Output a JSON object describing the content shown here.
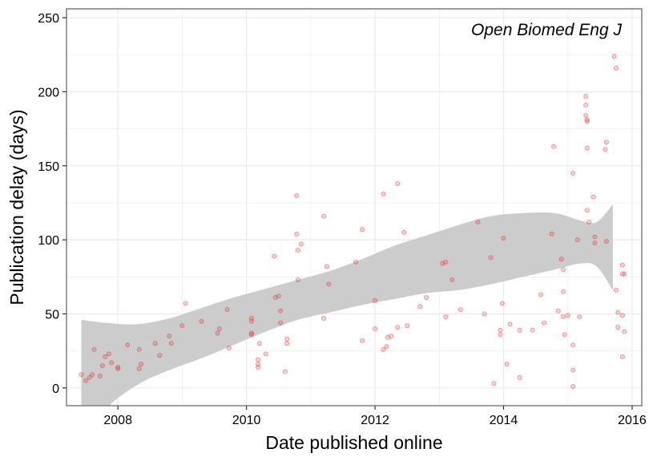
{
  "chart_data": {
    "type": "scatter",
    "title": "",
    "annotation": "Open Biomed Eng J",
    "xlabel": "Date published online",
    "ylabel": "Publication delay (days)",
    "xlim": [
      2007.2,
      2016.15
    ],
    "ylim": [
      -12,
      256
    ],
    "x_ticks": [
      2008,
      2010,
      2012,
      2014,
      2016
    ],
    "y_ticks": [
      0,
      50,
      100,
      150,
      200,
      250
    ],
    "grid": true,
    "colors": {
      "points": "#e41a1c",
      "band": "#cccccc",
      "grid": "#ebebeb",
      "border": "#7f7f7f"
    },
    "trend_band": {
      "x": [
        2007.43,
        2007.8,
        2008.3,
        2008.8,
        2009.3,
        2009.8,
        2010.3,
        2010.8,
        2011.3,
        2011.8,
        2012.3,
        2012.8,
        2013.3,
        2013.8,
        2014.3,
        2014.8,
        2015.2,
        2015.45,
        2015.7
      ],
      "lower": [
        -42,
        -15,
        2,
        12,
        20,
        29,
        38,
        46,
        51,
        56,
        60,
        64,
        66,
        70,
        75,
        80,
        84,
        82,
        66
      ],
      "upper": [
        46,
        44,
        43,
        47,
        54,
        61,
        67,
        73,
        79,
        87,
        96,
        103,
        110,
        116,
        118,
        118,
        113,
        112,
        124
      ]
    },
    "points": [
      {
        "x": 2007.43,
        "y": 9
      },
      {
        "x": 2007.5,
        "y": 5
      },
      {
        "x": 2007.56,
        "y": 7
      },
      {
        "x": 2007.6,
        "y": 9
      },
      {
        "x": 2007.63,
        "y": 26
      },
      {
        "x": 2007.72,
        "y": 8
      },
      {
        "x": 2007.76,
        "y": 15
      },
      {
        "x": 2007.8,
        "y": 21
      },
      {
        "x": 2007.86,
        "y": 23
      },
      {
        "x": 2007.9,
        "y": 17
      },
      {
        "x": 2008.0,
        "y": 14
      },
      {
        "x": 2008.0,
        "y": 13
      },
      {
        "x": 2008.15,
        "y": 29
      },
      {
        "x": 2008.33,
        "y": 26
      },
      {
        "x": 2008.33,
        "y": 13
      },
      {
        "x": 2008.36,
        "y": 16
      },
      {
        "x": 2008.58,
        "y": 30
      },
      {
        "x": 2008.65,
        "y": 22
      },
      {
        "x": 2008.8,
        "y": 35
      },
      {
        "x": 2008.83,
        "y": 30
      },
      {
        "x": 2009.0,
        "y": 42
      },
      {
        "x": 2009.05,
        "y": 57
      },
      {
        "x": 2009.3,
        "y": 45
      },
      {
        "x": 2009.55,
        "y": 37
      },
      {
        "x": 2009.58,
        "y": 40
      },
      {
        "x": 2009.7,
        "y": 53
      },
      {
        "x": 2009.73,
        "y": 27
      },
      {
        "x": 2010.08,
        "y": 47
      },
      {
        "x": 2010.08,
        "y": 45
      },
      {
        "x": 2010.08,
        "y": 37
      },
      {
        "x": 2010.08,
        "y": 36
      },
      {
        "x": 2010.18,
        "y": 19
      },
      {
        "x": 2010.18,
        "y": 16
      },
      {
        "x": 2010.18,
        "y": 14
      },
      {
        "x": 2010.2,
        "y": 30
      },
      {
        "x": 2010.3,
        "y": 23
      },
      {
        "x": 2010.43,
        "y": 89
      },
      {
        "x": 2010.45,
        "y": 61
      },
      {
        "x": 2010.5,
        "y": 62
      },
      {
        "x": 2010.53,
        "y": 52
      },
      {
        "x": 2010.53,
        "y": 44
      },
      {
        "x": 2010.6,
        "y": 11
      },
      {
        "x": 2010.63,
        "y": 33
      },
      {
        "x": 2010.63,
        "y": 30
      },
      {
        "x": 2010.78,
        "y": 130
      },
      {
        "x": 2010.78,
        "y": 104
      },
      {
        "x": 2010.8,
        "y": 93
      },
      {
        "x": 2010.8,
        "y": 73
      },
      {
        "x": 2010.85,
        "y": 97
      },
      {
        "x": 2011.2,
        "y": 116
      },
      {
        "x": 2011.25,
        "y": 82
      },
      {
        "x": 2011.28,
        "y": 70
      },
      {
        "x": 2011.2,
        "y": 47
      },
      {
        "x": 2011.7,
        "y": 85
      },
      {
        "x": 2011.8,
        "y": 107
      },
      {
        "x": 2011.8,
        "y": 32
      },
      {
        "x": 2012.0,
        "y": 59
      },
      {
        "x": 2012.0,
        "y": 40
      },
      {
        "x": 2012.13,
        "y": 131
      },
      {
        "x": 2012.13,
        "y": 26
      },
      {
        "x": 2012.18,
        "y": 28
      },
      {
        "x": 2012.2,
        "y": 34
      },
      {
        "x": 2012.25,
        "y": 35
      },
      {
        "x": 2012.35,
        "y": 138
      },
      {
        "x": 2012.35,
        "y": 41
      },
      {
        "x": 2012.45,
        "y": 105
      },
      {
        "x": 2012.5,
        "y": 42
      },
      {
        "x": 2012.7,
        "y": 55
      },
      {
        "x": 2012.8,
        "y": 61
      },
      {
        "x": 2013.05,
        "y": 84
      },
      {
        "x": 2013.1,
        "y": 85
      },
      {
        "x": 2013.1,
        "y": 48
      },
      {
        "x": 2013.2,
        "y": 73
      },
      {
        "x": 2013.33,
        "y": 53
      },
      {
        "x": 2013.6,
        "y": 112
      },
      {
        "x": 2013.7,
        "y": 50
      },
      {
        "x": 2013.8,
        "y": 88
      },
      {
        "x": 2013.85,
        "y": 3
      },
      {
        "x": 2014.0,
        "y": 101
      },
      {
        "x": 2013.95,
        "y": 39
      },
      {
        "x": 2013.95,
        "y": 36
      },
      {
        "x": 2013.98,
        "y": 57
      },
      {
        "x": 2014.05,
        "y": 16
      },
      {
        "x": 2014.1,
        "y": 43
      },
      {
        "x": 2014.25,
        "y": 39
      },
      {
        "x": 2014.25,
        "y": 7
      },
      {
        "x": 2014.45,
        "y": 39
      },
      {
        "x": 2014.58,
        "y": 63
      },
      {
        "x": 2014.63,
        "y": 44
      },
      {
        "x": 2014.75,
        "y": 104
      },
      {
        "x": 2014.78,
        "y": 163
      },
      {
        "x": 2014.85,
        "y": 52
      },
      {
        "x": 2014.9,
        "y": 87
      },
      {
        "x": 2014.93,
        "y": 80
      },
      {
        "x": 2014.93,
        "y": 65
      },
      {
        "x": 2014.93,
        "y": 48
      },
      {
        "x": 2014.95,
        "y": 36
      },
      {
        "x": 2015.0,
        "y": 49
      },
      {
        "x": 2015.08,
        "y": 145
      },
      {
        "x": 2015.08,
        "y": 29
      },
      {
        "x": 2015.08,
        "y": 12
      },
      {
        "x": 2015.08,
        "y": 1
      },
      {
        "x": 2015.15,
        "y": 100
      },
      {
        "x": 2015.18,
        "y": 48
      },
      {
        "x": 2015.28,
        "y": 197
      },
      {
        "x": 2015.28,
        "y": 191
      },
      {
        "x": 2015.28,
        "y": 184
      },
      {
        "x": 2015.3,
        "y": 181
      },
      {
        "x": 2015.3,
        "y": 180
      },
      {
        "x": 2015.3,
        "y": 162
      },
      {
        "x": 2015.3,
        "y": 120
      },
      {
        "x": 2015.33,
        "y": 112
      },
      {
        "x": 2015.4,
        "y": 129
      },
      {
        "x": 2015.42,
        "y": 102
      },
      {
        "x": 2015.42,
        "y": 98
      },
      {
        "x": 2015.6,
        "y": 166
      },
      {
        "x": 2015.58,
        "y": 161
      },
      {
        "x": 2015.6,
        "y": 99
      },
      {
        "x": 2015.72,
        "y": 224
      },
      {
        "x": 2015.75,
        "y": 216
      },
      {
        "x": 2015.75,
        "y": 66
      },
      {
        "x": 2015.78,
        "y": 51
      },
      {
        "x": 2015.78,
        "y": 41
      },
      {
        "x": 2015.85,
        "y": 83
      },
      {
        "x": 2015.85,
        "y": 77
      },
      {
        "x": 2015.88,
        "y": 77
      },
      {
        "x": 2015.85,
        "y": 49
      },
      {
        "x": 2015.88,
        "y": 38
      },
      {
        "x": 2015.85,
        "y": 21
      }
    ]
  }
}
